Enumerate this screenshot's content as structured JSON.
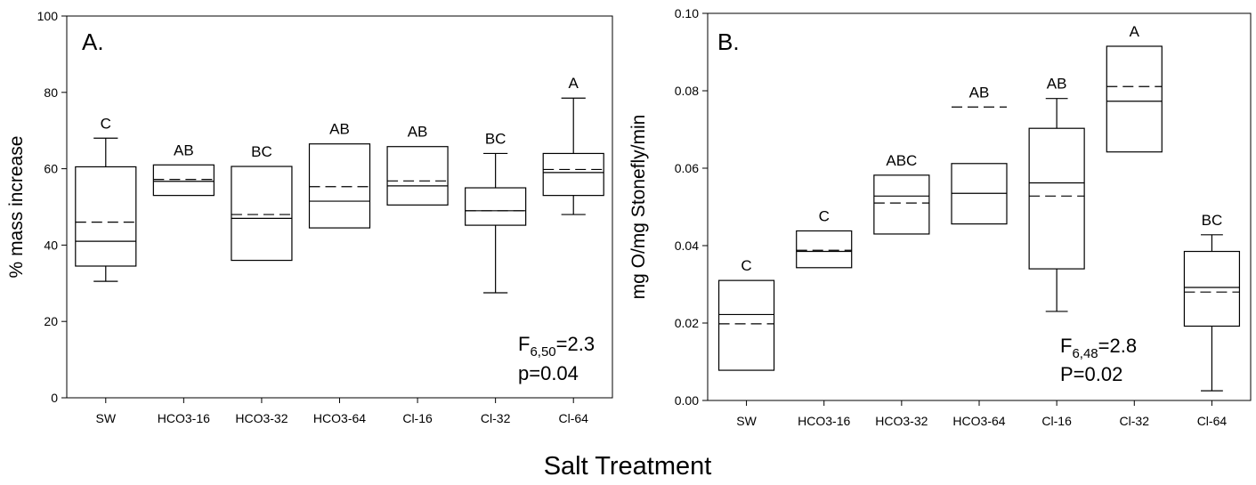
{
  "shared_xlabel": "Salt Treatment",
  "chart_data": [
    {
      "type": "box",
      "panel_label": "A.",
      "ylabel": "% mass increase",
      "ylim": [
        0,
        100
      ],
      "yticks": [
        "0",
        "20",
        "40",
        "60",
        "80",
        "100"
      ],
      "categories": [
        "SW",
        "HCO3-16",
        "HCO3-32",
        "HCO3-64",
        "Cl-16",
        "Cl-32",
        "Cl-64"
      ],
      "boxes": [
        {
          "whisker_low": 30.5,
          "q1": 34.5,
          "median": 41,
          "mean": 46,
          "q3": 60.5,
          "whisker_high": 68,
          "letter": "C"
        },
        {
          "whisker_low": null,
          "q1": 53,
          "median": 56.7,
          "mean": 57.2,
          "q3": 61,
          "whisker_high": null,
          "letter": "AB"
        },
        {
          "whisker_low": null,
          "q1": 36,
          "median": 47,
          "mean": 48,
          "q3": 60.6,
          "whisker_high": null,
          "letter": "BC"
        },
        {
          "whisker_low": null,
          "q1": 44.5,
          "median": 51.5,
          "mean": 55.3,
          "q3": 66.5,
          "whisker_high": null,
          "letter": "AB"
        },
        {
          "whisker_low": null,
          "q1": 50.5,
          "median": 55.5,
          "mean": 56.8,
          "q3": 65.8,
          "whisker_high": null,
          "letter": "AB"
        },
        {
          "whisker_low": 27.5,
          "q1": 45.2,
          "median": 49,
          "mean": 49,
          "q3": 55,
          "whisker_high": 64,
          "letter": "BC"
        },
        {
          "whisker_low": 48,
          "q1": 53,
          "median": 59,
          "mean": 59.8,
          "q3": 64,
          "whisker_high": 78.5,
          "letter": "A"
        }
      ],
      "stat_main": "F",
      "stat_sub": "6,50",
      "stat_value": "=2.3",
      "stat_p": "p=0.04"
    },
    {
      "type": "box",
      "panel_label": "B.",
      "ylabel": "mg O/mg Stonefly/min",
      "ylim": [
        0,
        0.1
      ],
      "yticks": [
        "0.00",
        "0.02",
        "0.04",
        "0.06",
        "0.08",
        "0.10"
      ],
      "categories": [
        "SW",
        "HCO3-16",
        "HCO3-32",
        "HCO3-64",
        "Cl-16",
        "Cl-32",
        "Cl-64"
      ],
      "boxes": [
        {
          "whisker_low": null,
          "q1": 0.0078,
          "median": 0.0222,
          "mean": 0.0198,
          "q3": 0.031,
          "whisker_high": null,
          "letter": "C"
        },
        {
          "whisker_low": null,
          "q1": 0.0343,
          "median": 0.0385,
          "mean": 0.0388,
          "q3": 0.0438,
          "whisker_high": null,
          "letter": "C"
        },
        {
          "whisker_low": null,
          "q1": 0.043,
          "median": 0.0528,
          "mean": 0.051,
          "q3": 0.0582,
          "whisker_high": null,
          "letter": "ABC"
        },
        {
          "whisker_low": null,
          "q1": 0.0456,
          "median": 0.0535,
          "mean": 0.0758,
          "q3": 0.0612,
          "whisker_high": null,
          "letter": "AB"
        },
        {
          "whisker_low": 0.023,
          "q1": 0.034,
          "median": 0.0562,
          "mean": 0.0528,
          "q3": 0.0703,
          "whisker_high": 0.078,
          "letter": "AB"
        },
        {
          "whisker_low": null,
          "q1": 0.0642,
          "median": 0.0773,
          "mean": 0.0811,
          "q3": 0.0915,
          "whisker_high": null,
          "letter": "A"
        },
        {
          "whisker_low": 0.0025,
          "q1": 0.0192,
          "median": 0.0292,
          "mean": 0.028,
          "q3": 0.0385,
          "whisker_high": 0.0428,
          "letter": "BC"
        }
      ],
      "stat_main": "F",
      "stat_sub": "6,48",
      "stat_value": "=2.8",
      "stat_p": "P=0.02"
    }
  ]
}
